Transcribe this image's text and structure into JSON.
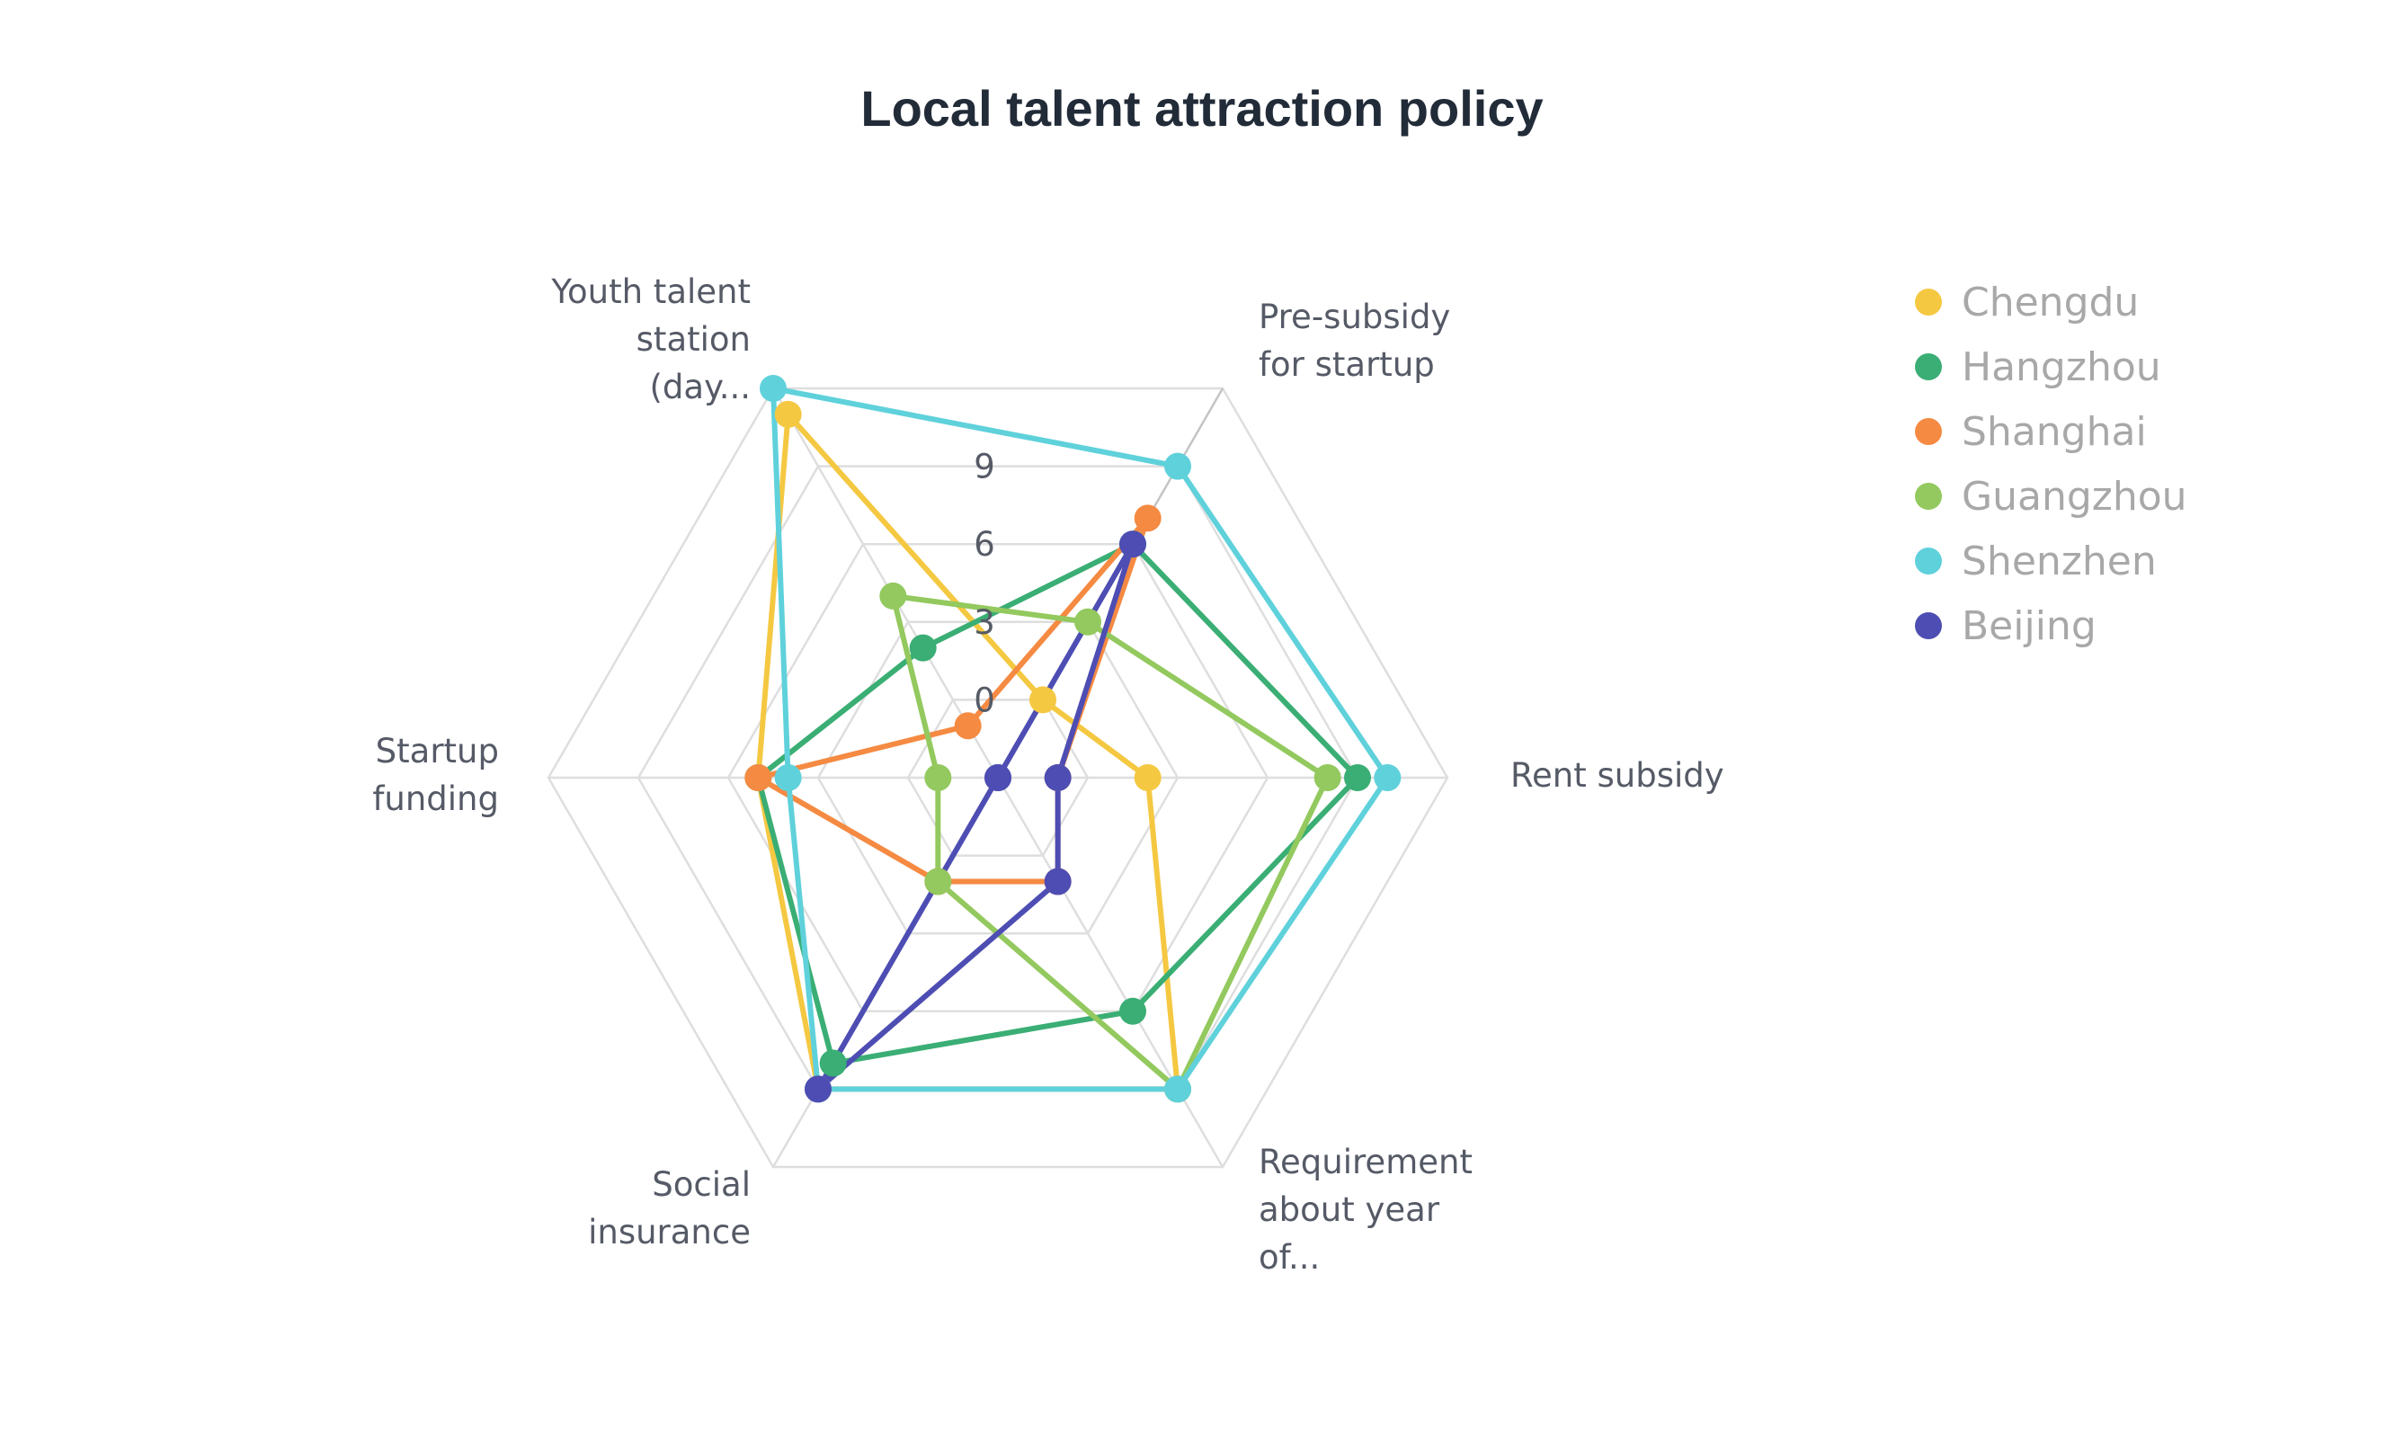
{
  "chart_data": {
    "type": "radar",
    "title": "Local talent attraction policy",
    "axes": [
      "Pre-subsidy for startup",
      "Rent subsidy",
      "Requirement about year of...",
      "Social insurance",
      "Startup funding",
      "Youth talent station (day..."
    ],
    "ticks": [
      "0",
      "3",
      "6",
      "9"
    ],
    "range": [
      -3,
      12
    ],
    "grid": true,
    "legend_position": "right",
    "series": [
      {
        "name": "Chengdu",
        "color": "#F5C842",
        "values": [
          0,
          2,
          9,
          9,
          5,
          11
        ]
      },
      {
        "name": "Hangzhou",
        "color": "#3AAE74",
        "values": [
          6,
          9,
          6,
          8,
          5,
          2
        ]
      },
      {
        "name": "Shanghai",
        "color": "#F58A42",
        "values": [
          7,
          -1,
          1,
          1,
          5,
          -1
        ]
      },
      {
        "name": "Guangzhou",
        "color": "#93C95E",
        "values": [
          3,
          8,
          9,
          1,
          -1,
          4
        ]
      },
      {
        "name": "Shenzhen",
        "color": "#5FD1DB",
        "values": [
          9,
          10,
          9,
          9,
          4,
          12
        ]
      },
      {
        "name": "Beijing",
        "color": "#4D4DB3",
        "values": [
          6,
          -1,
          1,
          9,
          -3,
          -3
        ]
      }
    ]
  }
}
